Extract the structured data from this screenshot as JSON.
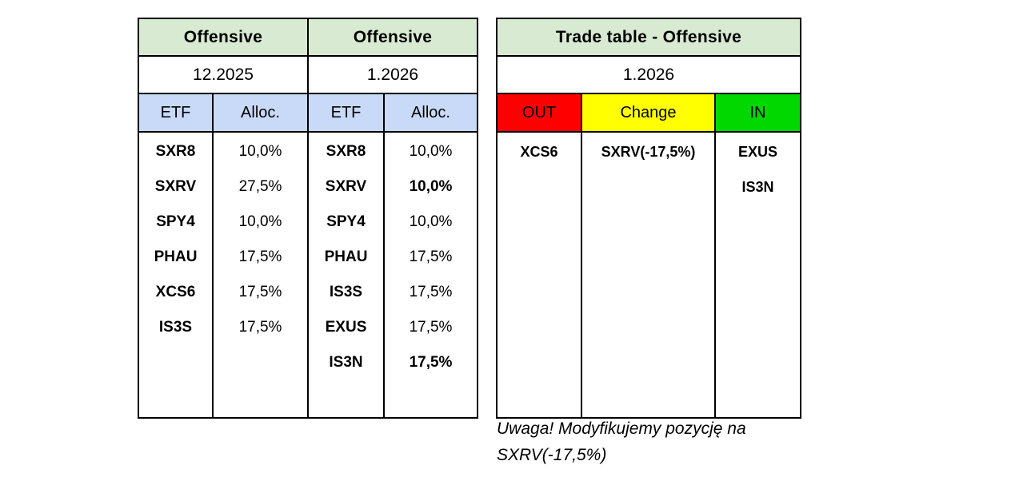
{
  "colors": {
    "title_green": "#d9ead3",
    "header_blue": "#c9daf8",
    "out_red": "#ff0000",
    "change_yellow": "#ffff00",
    "in_green": "#00d800",
    "border": "#000000",
    "background": "#ffffff"
  },
  "allocation_table": {
    "periods": [
      {
        "title": "Offensive",
        "month": "12.2025",
        "etf_header": "ETF",
        "alloc_header": "Alloc.",
        "etfs": [
          "SXR8",
          "SXRV",
          "SPY4",
          "PHAU",
          "XCS6",
          "IS3S"
        ],
        "allocations": [
          "10,0%",
          "27,5%",
          "10,0%",
          "17,5%",
          "17,5%",
          "17,5%"
        ]
      },
      {
        "title": "Offensive",
        "month": "1.2026",
        "etf_header": "ETF",
        "alloc_header": "Alloc.",
        "etfs": [
          "SXR8",
          "SXRV",
          "SPY4",
          "PHAU",
          "IS3S",
          "EXUS",
          "IS3N"
        ],
        "allocations": [
          "10,0%",
          {
            "text": "10,0%",
            "bold": true
          },
          "10,0%",
          "17,5%",
          "17,5%",
          "17,5%",
          {
            "text": "17,5%",
            "bold": true
          }
        ]
      }
    ]
  },
  "trade_table": {
    "title": "Trade table - Offensive",
    "month": "1.2026",
    "columns": [
      {
        "label": "OUT",
        "color": "#ff0000",
        "tickers": [
          "XCS6"
        ]
      },
      {
        "label": "Change",
        "color": "#ffff00",
        "tickers": [
          "SXRV(-17,5%)"
        ]
      },
      {
        "label": "IN",
        "color": "#00d800",
        "tickers": [
          "EXUS",
          "IS3N"
        ]
      }
    ]
  },
  "note": "Uwaga! Modyfikujemy pozycję na SXRV(-17,5%)"
}
